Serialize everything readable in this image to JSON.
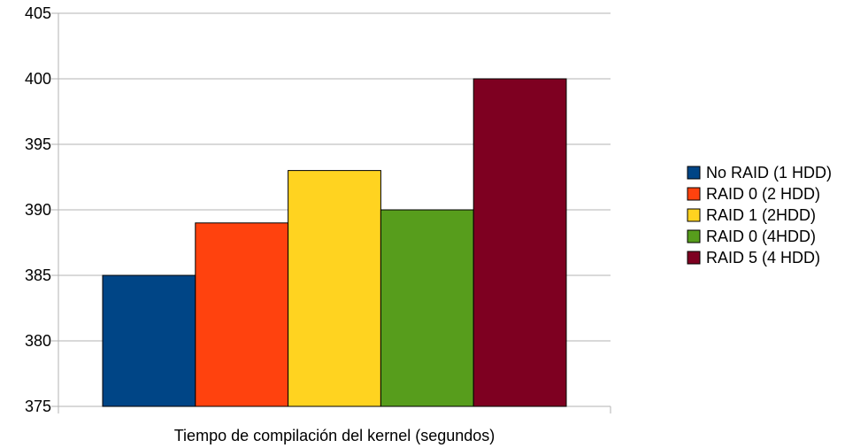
{
  "chart_data": {
    "type": "bar",
    "title": "",
    "xlabel": "Tiempo de compilación del kernel (segundos)",
    "ylabel": "",
    "ylim": [
      375,
      405
    ],
    "yticks": [
      375,
      380,
      385,
      390,
      395,
      400,
      405
    ],
    "grid": true,
    "legend_position": "right",
    "categories": [
      "Tiempo de compilación del kernel (segundos)"
    ],
    "series": [
      {
        "name": "No RAID (1 HDD)",
        "values": [
          385
        ],
        "color": "#004586"
      },
      {
        "name": "RAID 0 (2 HDD)",
        "values": [
          389
        ],
        "color": "#ff420e"
      },
      {
        "name": "RAID 1 (2HDD)",
        "values": [
          393
        ],
        "color": "#ffd320"
      },
      {
        "name": "RAID 0 (4HDD)",
        "values": [
          390
        ],
        "color": "#579d1c"
      },
      {
        "name": "RAID 5 (4 HDD)",
        "values": [
          400
        ],
        "color": "#7e0021"
      }
    ]
  }
}
